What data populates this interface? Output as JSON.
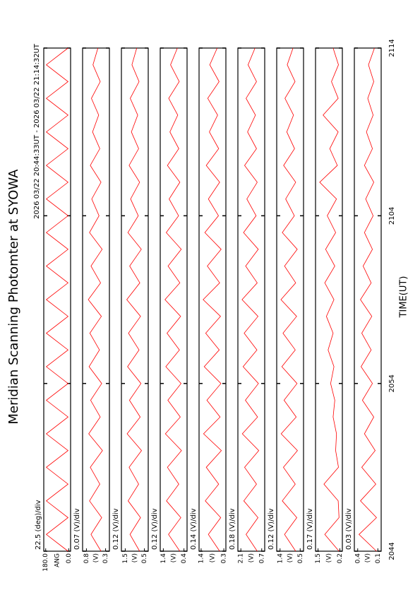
{
  "chart_data": {
    "type": "line",
    "title": "Meridian Scanning Photomter at SYOWA",
    "subtitle": "2026 03/22 20:44:33UT - 2026 03/22 21:14:32UT",
    "xlabel": "TIME(UT)",
    "xlim": [
      44,
      74
    ],
    "xticks": [
      {
        "value": 44,
        "label": "2044"
      },
      {
        "value": 54,
        "label": "2054"
      },
      {
        "value": 64,
        "label": "2104"
      },
      {
        "value": 74,
        "label": "2114"
      }
    ],
    "color": "#ff0000",
    "x": [
      44,
      45,
      46,
      47,
      48,
      49,
      50,
      51,
      52,
      53,
      54,
      55,
      56,
      57,
      58,
      59,
      60,
      61,
      62,
      63,
      64,
      65,
      66,
      67,
      68,
      69,
      70,
      71,
      72,
      73,
      74
    ],
    "panels": [
      {
        "label": "22.5 (deg)/div",
        "ylabel": "ANG",
        "ylim": [
          -15,
          195
        ],
        "yticks": [
          {
            "value": 180,
            "label": "180.0"
          },
          {
            "value": 0,
            "label": "0.0"
          }
        ],
        "values": [
          5,
          175,
          5,
          175,
          5,
          175,
          5,
          175,
          5,
          175,
          5,
          175,
          5,
          175,
          5,
          175,
          5,
          175,
          5,
          175,
          5,
          175,
          5,
          175,
          5,
          175,
          5,
          175,
          5,
          175,
          5
        ]
      },
      {
        "label": "0.07 (V)/div",
        "ylabel": "(V)",
        "ylim": [
          0.2,
          0.9
        ],
        "yticks": [
          0.8,
          0.3
        ],
        "values": [
          0.42,
          0.68,
          0.4,
          0.72,
          0.45,
          0.7,
          0.38,
          0.74,
          0.44,
          0.69,
          0.4,
          0.73,
          0.46,
          0.71,
          0.41,
          0.75,
          0.43,
          0.68,
          0.39,
          0.72,
          0.47,
          0.66,
          0.42,
          0.7,
          0.45,
          0.64,
          0.48,
          0.67,
          0.44,
          0.63,
          0.5
        ]
      },
      {
        "label": "0.12 (V)/div",
        "ylabel": "(V)",
        "ylim": [
          0.3,
          1.7
        ],
        "yticks": [
          1.5,
          0.5
        ],
        "values": [
          0.75,
          1.25,
          0.7,
          1.35,
          0.8,
          1.3,
          0.65,
          1.4,
          0.72,
          1.28,
          0.68,
          1.38,
          0.78,
          1.33,
          0.7,
          1.42,
          0.74,
          1.27,
          0.66,
          1.36,
          0.82,
          1.22,
          0.75,
          1.3,
          0.8,
          1.18,
          0.85,
          1.24,
          0.78,
          1.15,
          0.9
        ]
      },
      {
        "label": "0.12 (V)/div",
        "ylabel": "(V)",
        "ylim": [
          0.25,
          1.55
        ],
        "yticks": [
          1.4,
          0.4
        ],
        "values": [
          0.6,
          1.15,
          0.55,
          1.25,
          0.65,
          1.2,
          0.52,
          1.3,
          0.58,
          1.18,
          0.54,
          1.28,
          0.62,
          1.22,
          0.56,
          1.32,
          0.6,
          1.17,
          0.53,
          1.26,
          0.66,
          1.12,
          0.6,
          1.2,
          0.65,
          1.08,
          0.7,
          1.14,
          0.63,
          1.05,
          0.72
        ]
      },
      {
        "label": "0.14 (V)/div",
        "ylabel": "(V)",
        "ylim": [
          0.2,
          1.5
        ],
        "yticks": [
          1.4,
          0.3
        ],
        "values": [
          0.5,
          1.05,
          0.45,
          1.2,
          0.55,
          1.15,
          0.42,
          1.28,
          0.48,
          1.12,
          0.44,
          1.25,
          0.52,
          1.18,
          0.46,
          1.3,
          0.5,
          1.1,
          0.43,
          1.22,
          0.56,
          1.05,
          0.5,
          1.15,
          0.55,
          1.0,
          0.6,
          1.08,
          0.53,
          0.98,
          0.62
        ]
      },
      {
        "label": "0.18 (V)/div",
        "ylabel": "(V)",
        "ylim": [
          0.5,
          2.3
        ],
        "yticks": [
          2.1,
          0.7
        ],
        "values": [
          1.0,
          1.75,
          0.95,
          1.9,
          1.05,
          1.85,
          0.9,
          2.0,
          0.98,
          1.8,
          0.92,
          1.95,
          1.02,
          1.88,
          0.95,
          2.02,
          1.0,
          1.78,
          0.93,
          1.92,
          1.08,
          1.7,
          1.0,
          1.85,
          1.05,
          1.65,
          1.12,
          1.75,
          1.05,
          1.62,
          1.15
        ]
      },
      {
        "label": "0.12 (V)/div",
        "ylabel": "(V)",
        "ylim": [
          0.35,
          1.55
        ],
        "yticks": [
          1.4,
          0.5
        ],
        "values": [
          0.7,
          1.2,
          0.65,
          1.3,
          0.72,
          1.25,
          0.62,
          1.35,
          0.68,
          1.22,
          0.64,
          1.32,
          0.72,
          1.27,
          0.66,
          1.36,
          0.7,
          1.2,
          0.63,
          1.3,
          0.76,
          1.15,
          0.7,
          1.24,
          0.75,
          1.1,
          0.8,
          1.18,
          0.73,
          1.08,
          0.82
        ]
      },
      {
        "label": "0.17 (V)/div",
        "ylabel": "(V)",
        "ylim": [
          0.05,
          1.65
        ],
        "yticks": [
          1.5,
          0.2
        ],
        "values": [
          0.25,
          1.1,
          0.25,
          0.3,
          1.15,
          0.28,
          0.45,
          0.4,
          0.6,
          0.5,
          0.75,
          0.55,
          0.9,
          0.6,
          1.0,
          0.55,
          1.1,
          0.5,
          1.05,
          0.45,
          0.95,
          0.4,
          1.4,
          0.35,
          0.8,
          0.3,
          1.2,
          0.3,
          0.7,
          0.28,
          0.6
        ]
      },
      {
        "label": "0.03 (V)/div",
        "ylabel": "(V)",
        "ylim": [
          0.05,
          0.45
        ],
        "yticks": [
          0.4,
          0.1
        ],
        "values": [
          0.12,
          0.38,
          0.12,
          0.36,
          0.13,
          0.34,
          0.14,
          0.3,
          0.16,
          0.33,
          0.18,
          0.35,
          0.2,
          0.34,
          0.19,
          0.36,
          0.2,
          0.32,
          0.18,
          0.3,
          0.17,
          0.28,
          0.16,
          0.3,
          0.18,
          0.27,
          0.17,
          0.25,
          0.16,
          0.24,
          0.15
        ]
      }
    ]
  }
}
